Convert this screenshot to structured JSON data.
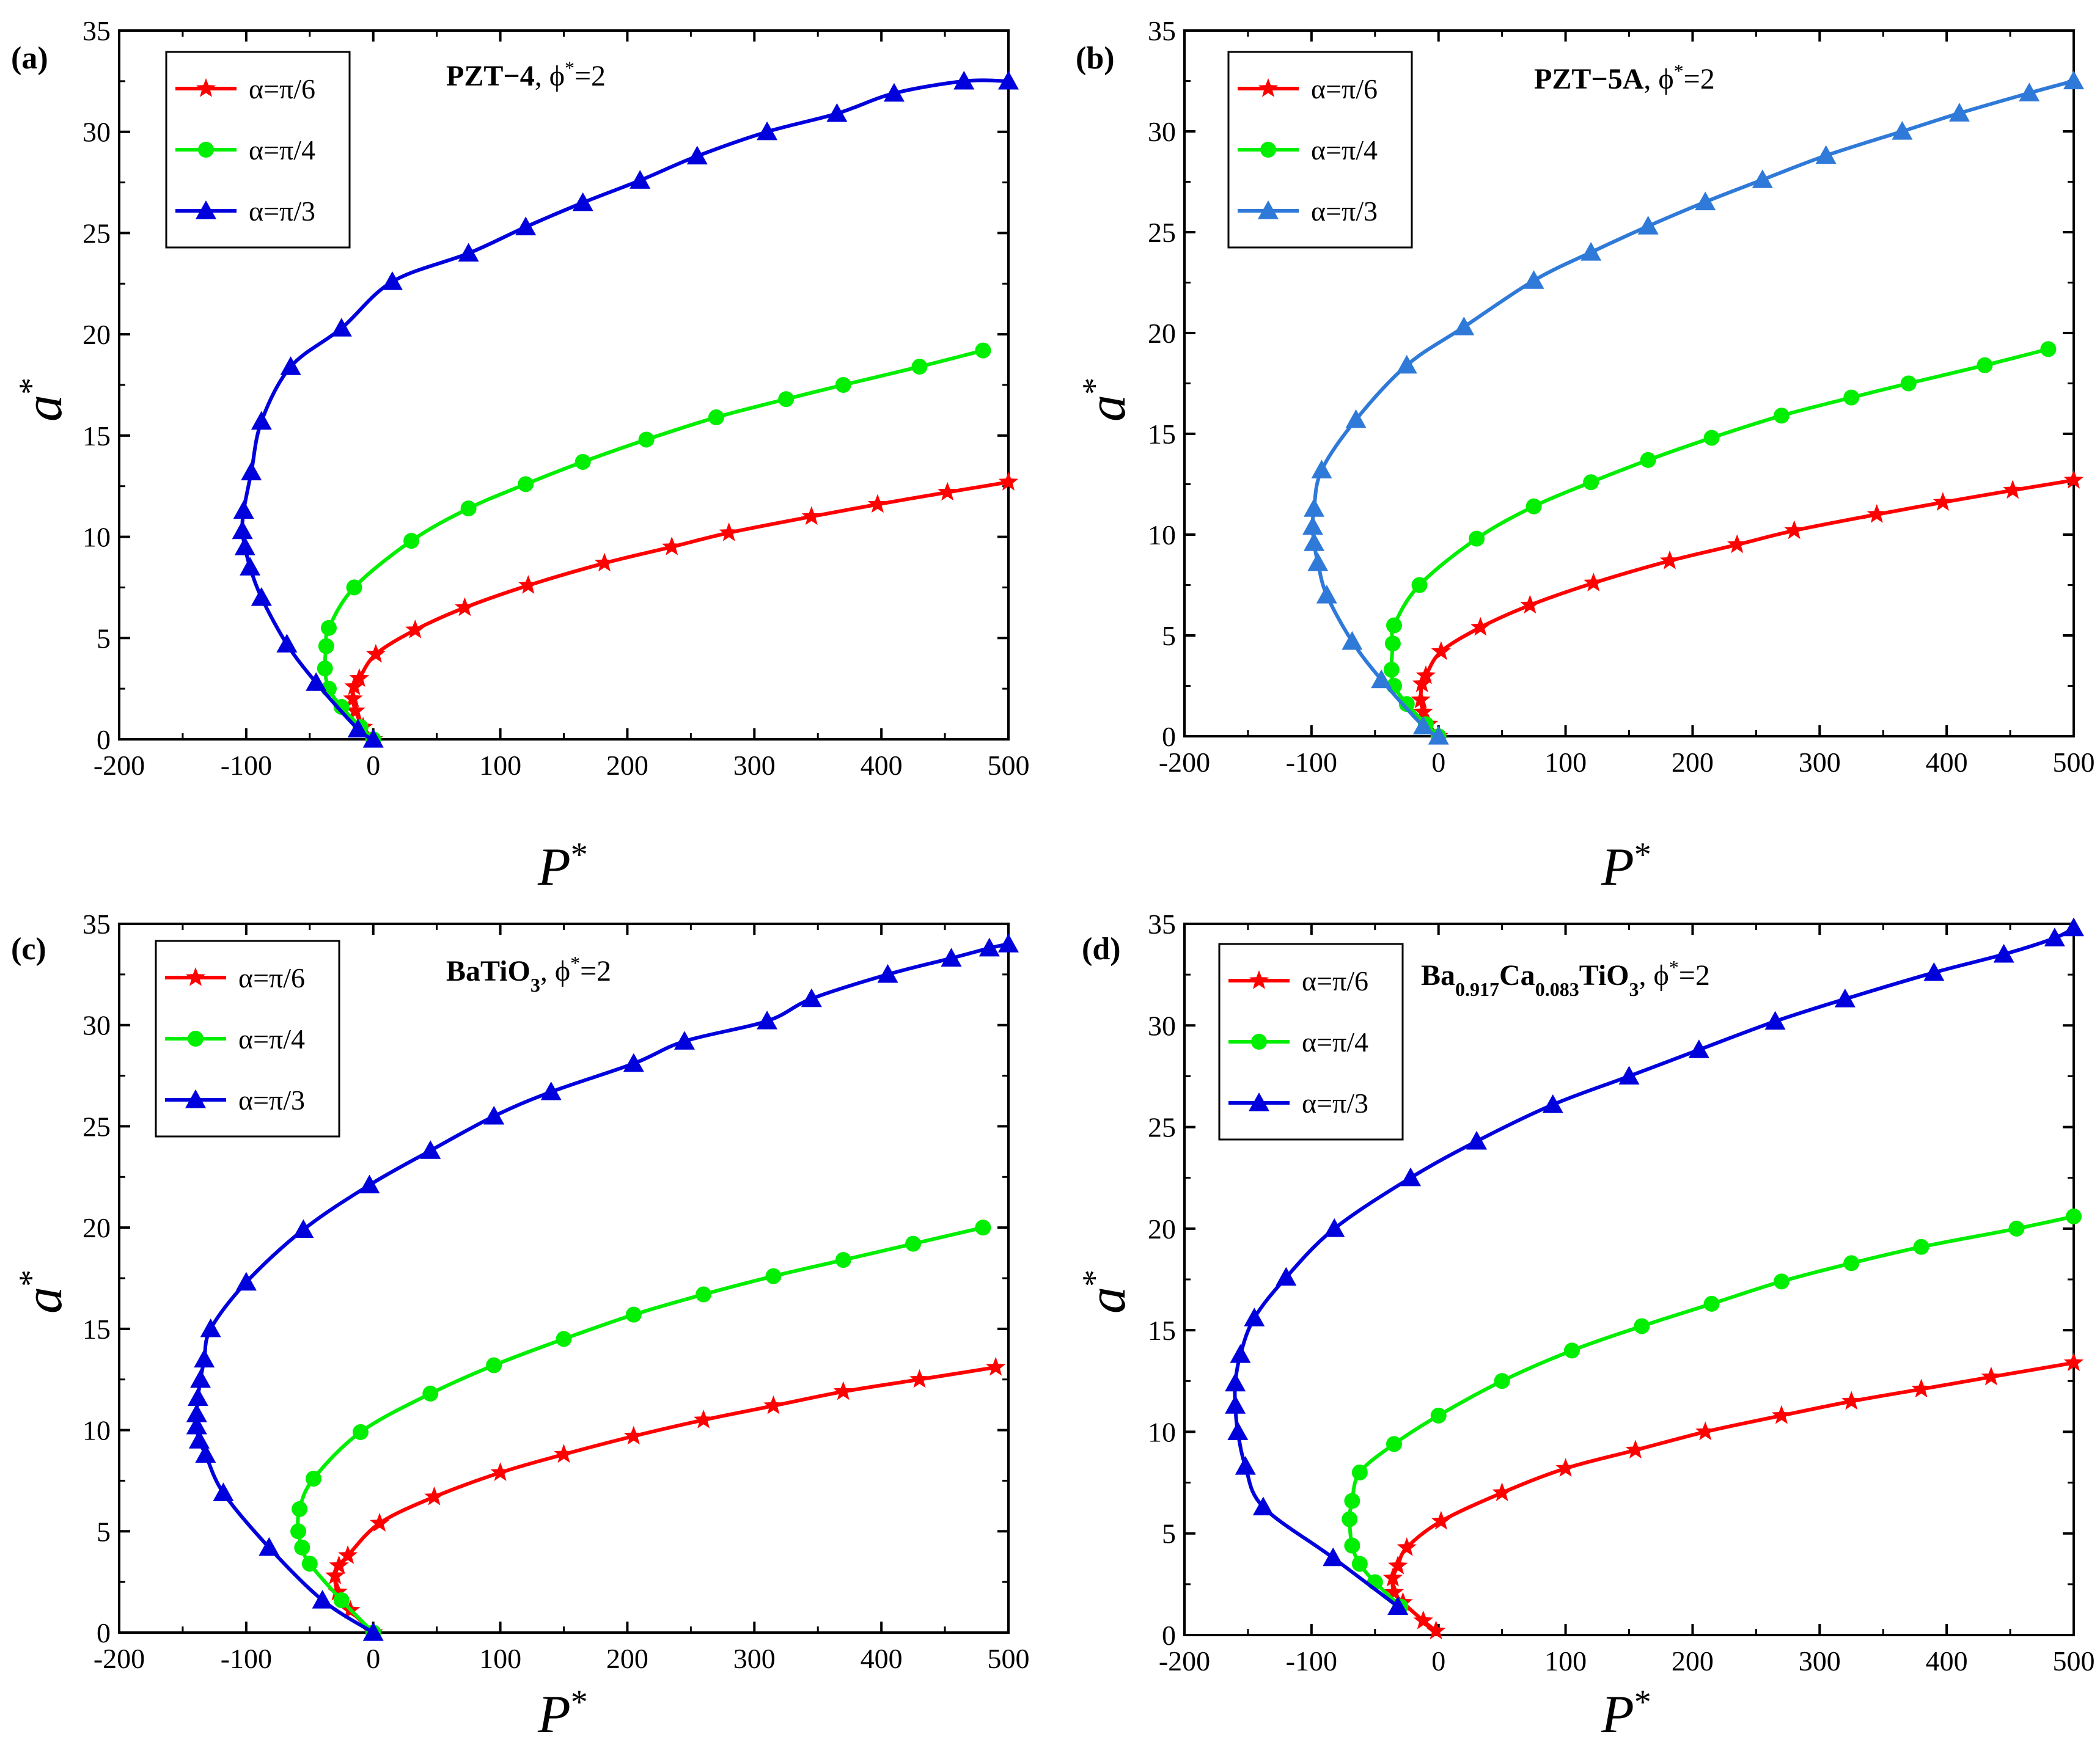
{
  "chart_data": [
    {
      "type": "line",
      "panel_label": "(a)",
      "title_main": "PZT−4",
      "title_tail": ", ϕ",
      "title_sup": "*",
      "title_end": "=2",
      "xlabel": "P",
      "ylabel": "a",
      "label_sup": "*",
      "xlim": [
        -200,
        500
      ],
      "ylim": [
        0,
        35
      ],
      "xticks": [
        -200,
        -100,
        0,
        100,
        200,
        300,
        400,
        500
      ],
      "yticks": [
        0,
        5,
        10,
        15,
        20,
        25,
        30,
        35
      ],
      "legend": "top-left",
      "series": [
        {
          "name": "α=π/6",
          "color": "#ff0000",
          "marker": "star",
          "x": [
            0,
            -8,
            -14,
            -16,
            -15,
            -11,
            2,
            33,
            72,
            122,
            182,
            235,
            280,
            345,
            397,
            452,
            500
          ],
          "y": [
            0,
            0.6,
            1.4,
            2.0,
            2.6,
            3.0,
            4.2,
            5.4,
            6.5,
            7.6,
            8.7,
            9.5,
            10.2,
            11.0,
            11.6,
            12.2,
            12.7
          ]
        },
        {
          "name": "α=π/4",
          "color": "#00ee00",
          "marker": "circle",
          "x": [
            0,
            -10,
            -25,
            -35,
            -38,
            -37,
            -35,
            -15,
            30,
            75,
            120,
            165,
            215,
            270,
            325,
            370,
            430,
            480
          ],
          "y": [
            0,
            0.6,
            1.6,
            2.5,
            3.5,
            4.6,
            5.5,
            7.5,
            9.8,
            11.4,
            12.6,
            13.7,
            14.8,
            15.9,
            16.8,
            17.5,
            18.4,
            19.2
          ]
        },
        {
          "name": "α=π/3",
          "color": "#0000dd",
          "marker": "triangle",
          "x": [
            0,
            -12,
            -45,
            -68,
            -88,
            -97,
            -101,
            -103,
            -102,
            -96,
            -88,
            -65,
            -25,
            15,
            75,
            120,
            165,
            210,
            255,
            310,
            365,
            410,
            465,
            500
          ],
          "y": [
            0,
            0.5,
            2.8,
            4.7,
            7.0,
            8.5,
            9.5,
            10.3,
            11.3,
            13.2,
            15.7,
            18.4,
            20.3,
            22.6,
            24.0,
            25.3,
            26.5,
            27.6,
            28.8,
            30.0,
            30.9,
            31.9,
            32.5,
            32.5
          ]
        }
      ]
    },
    {
      "type": "line",
      "panel_label": "(b)",
      "title_main": "PZT−5A",
      "title_tail": ", ϕ",
      "title_sup": "*",
      "title_end": "=2",
      "xlabel": "P",
      "ylabel": "a",
      "label_sup": "*",
      "xlim": [
        -200,
        500
      ],
      "ylim": [
        0,
        35
      ],
      "xticks": [
        -200,
        -100,
        0,
        100,
        200,
        300,
        400,
        500
      ],
      "yticks": [
        0,
        5,
        10,
        15,
        20,
        25,
        30,
        35
      ],
      "legend": "top-left",
      "series": [
        {
          "name": "α=π/6",
          "color": "#ff0000",
          "marker": "star",
          "x": [
            0,
            -8,
            -12,
            -14,
            -13,
            -10,
            2,
            33,
            72,
            122,
            182,
            235,
            280,
            345,
            397,
            452,
            500
          ],
          "y": [
            0,
            0.6,
            1.2,
            1.8,
            2.6,
            3.0,
            4.2,
            5.4,
            6.5,
            7.6,
            8.7,
            9.5,
            10.2,
            11.0,
            11.6,
            12.2,
            12.7
          ]
        },
        {
          "name": "α=π/4",
          "color": "#00ee00",
          "marker": "circle",
          "x": [
            0,
            -10,
            -25,
            -35,
            -37,
            -36,
            -35,
            -15,
            30,
            75,
            120,
            165,
            215,
            270,
            325,
            370,
            430,
            480
          ],
          "y": [
            0,
            0.6,
            1.6,
            2.5,
            3.3,
            4.6,
            5.5,
            7.5,
            9.8,
            11.4,
            12.6,
            13.7,
            14.8,
            15.9,
            16.8,
            17.5,
            18.4,
            19.2
          ]
        },
        {
          "name": "α=π/3",
          "color": "#2f7ad8",
          "marker": "triangle",
          "x": [
            0,
            -12,
            -45,
            -68,
            -88,
            -95,
            -98,
            -99,
            -98,
            -92,
            -65,
            -25,
            20,
            75,
            120,
            165,
            210,
            255,
            305,
            365,
            410,
            465,
            500
          ],
          "y": [
            0,
            0.5,
            2.8,
            4.7,
            7.0,
            8.6,
            9.6,
            10.4,
            11.3,
            13.2,
            15.7,
            18.4,
            20.3,
            22.6,
            24.0,
            25.3,
            26.5,
            27.6,
            28.8,
            30.0,
            30.9,
            31.9,
            32.5
          ]
        }
      ]
    },
    {
      "type": "line",
      "panel_label": "(c)",
      "title_main": "BaTiO",
      "title_sub": "3",
      "title_tail": ", ϕ",
      "title_sup": "*",
      "title_end": "=2",
      "xlabel": "P",
      "ylabel": "a",
      "label_sup": "*",
      "xlim": [
        -200,
        500
      ],
      "ylim": [
        0,
        35
      ],
      "xticks": [
        -200,
        -100,
        0,
        100,
        200,
        300,
        400,
        500
      ],
      "yticks": [
        0,
        5,
        10,
        15,
        20,
        25,
        30,
        35
      ],
      "legend": "top-left",
      "series": [
        {
          "name": "α=π/6",
          "color": "#ff0000",
          "marker": "star",
          "x": [
            0,
            -18,
            -28,
            -30,
            -27,
            -20,
            5,
            48,
            100,
            150,
            205,
            260,
            315,
            370,
            430,
            490
          ],
          "y": [
            0,
            1.1,
            2.0,
            2.8,
            3.3,
            3.8,
            5.4,
            6.7,
            7.9,
            8.8,
            9.7,
            10.5,
            11.2,
            11.9,
            12.5,
            13.1
          ]
        },
        {
          "name": "α=π/4",
          "color": "#00ee00",
          "marker": "circle",
          "x": [
            0,
            -25,
            -50,
            -56,
            -59,
            -58,
            -47,
            -10,
            45,
            95,
            150,
            205,
            260,
            315,
            370,
            425,
            480
          ],
          "y": [
            0,
            1.6,
            3.4,
            4.2,
            5.0,
            6.1,
            7.6,
            9.9,
            11.8,
            13.2,
            14.5,
            15.7,
            16.7,
            17.6,
            18.4,
            19.2,
            20.0
          ]
        },
        {
          "name": "α=π/3",
          "color": "#0000dd",
          "marker": "triangle",
          "x": [
            0,
            -40,
            -82,
            -118,
            -132,
            -137,
            -139,
            -139,
            -138,
            -136,
            -133,
            -128,
            -100,
            -55,
            -3,
            45,
            95,
            140,
            205,
            245,
            310,
            345,
            405,
            455,
            485,
            500
          ],
          "y": [
            0,
            1.6,
            4.2,
            6.9,
            8.8,
            9.5,
            10.2,
            10.8,
            11.6,
            12.5,
            13.5,
            15.0,
            17.3,
            19.9,
            22.1,
            23.8,
            25.5,
            26.7,
            28.1,
            29.2,
            30.2,
            31.3,
            32.5,
            33.3,
            33.8,
            34.0
          ]
        }
      ]
    },
    {
      "type": "line",
      "panel_label": "(d)",
      "title_main": "Ba",
      "title_sub": "0.917",
      "title_main2": "Ca",
      "title_sub2": "0.083",
      "title_main3": "TiO",
      "title_sub3": "3",
      "title_tail": ", ϕ",
      "title_sup": "*",
      "title_end": "=2",
      "xlabel": "P",
      "ylabel": "a",
      "label_sup": "*",
      "xlim": [
        -200,
        500
      ],
      "ylim": [
        0,
        35
      ],
      "xticks": [
        -200,
        -100,
        0,
        100,
        200,
        300,
        400,
        500
      ],
      "yticks": [
        0,
        5,
        10,
        15,
        20,
        25,
        30,
        35
      ],
      "legend": "top-left",
      "series": [
        {
          "name": "α=π/6",
          "color": "#ff0000",
          "marker": "star",
          "x": [
            -2,
            -12,
            -28,
            -35,
            -36,
            -32,
            -25,
            2,
            50,
            100,
            155,
            210,
            270,
            325,
            380,
            435,
            500
          ],
          "y": [
            0.2,
            0.7,
            1.6,
            2.1,
            2.8,
            3.4,
            4.3,
            5.6,
            7.0,
            8.2,
            9.1,
            10.0,
            10.8,
            11.5,
            12.1,
            12.7,
            13.4
          ]
        },
        {
          "name": "α=π/4",
          "color": "#00ee00",
          "marker": "circle",
          "x": [
            -30,
            -50,
            -62,
            -68,
            -70,
            -68,
            -62,
            -35,
            0,
            50,
            105,
            160,
            215,
            270,
            325,
            380,
            455,
            500
          ],
          "y": [
            1.4,
            2.6,
            3.5,
            4.4,
            5.7,
            6.6,
            8.0,
            9.4,
            10.8,
            12.5,
            14.0,
            15.2,
            16.3,
            17.4,
            18.3,
            19.1,
            20.0,
            20.6
          ]
        },
        {
          "name": "α=π/3",
          "color": "#0000dd",
          "marker": "triangle",
          "x": [
            -32,
            -83,
            -138,
            -152,
            -158,
            -160,
            -160,
            -156,
            -145,
            -120,
            -82,
            -22,
            30,
            90,
            150,
            205,
            265,
            320,
            390,
            445,
            485,
            500
          ],
          "y": [
            1.4,
            3.8,
            6.3,
            8.3,
            10.0,
            11.3,
            12.4,
            13.8,
            15.6,
            17.6,
            20.0,
            22.5,
            24.3,
            26.1,
            27.5,
            28.8,
            30.2,
            31.3,
            32.6,
            33.5,
            34.3,
            34.8
          ]
        }
      ]
    }
  ]
}
